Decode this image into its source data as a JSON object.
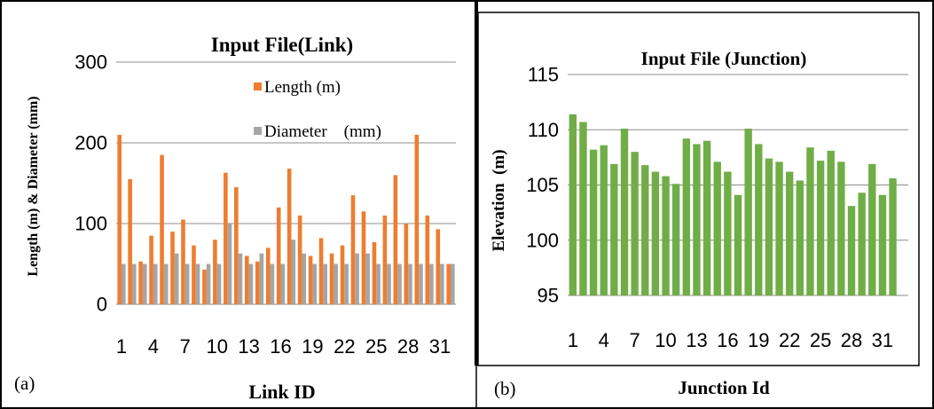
{
  "panels": [
    {
      "tag": "(a)"
    },
    {
      "tag": "(b)"
    }
  ],
  "chart_data": [
    {
      "type": "bar",
      "title": "Input File(Link)",
      "xlabel": "Link ID",
      "ylabel": "Length (m) & Diameter (mm)",
      "ylim": [
        0,
        300
      ],
      "yticks": [
        "0",
        "100",
        "200",
        "300"
      ],
      "grid": true,
      "legend_position": "top-right",
      "categories": [
        "1",
        "2",
        "3",
        "4",
        "5",
        "6",
        "7",
        "8",
        "9",
        "10",
        "11",
        "12",
        "13",
        "14",
        "15",
        "16",
        "17",
        "18",
        "19",
        "20",
        "21",
        "22",
        "23",
        "24",
        "25",
        "26",
        "27",
        "28",
        "29",
        "30",
        "31",
        "32"
      ],
      "xtick_labels": [
        "1",
        "4",
        "7",
        "10",
        "13",
        "16",
        "19",
        "22",
        "25",
        "28",
        "31"
      ],
      "series": [
        {
          "name": "Length (m)",
          "color": "#ed7d31",
          "values": [
            210,
            155,
            53,
            85,
            185,
            90,
            105,
            73,
            43,
            80,
            163,
            145,
            60,
            53,
            70,
            120,
            168,
            110,
            60,
            82,
            63,
            73,
            135,
            115,
            77,
            110,
            160,
            100,
            210,
            110,
            93,
            50
          ]
        },
        {
          "name": "Diameter    (mm)",
          "color": "#a5a5a5",
          "values": [
            50,
            50,
            50,
            50,
            50,
            63,
            50,
            50,
            50,
            50,
            100,
            63,
            50,
            63,
            50,
            50,
            80,
            63,
            50,
            50,
            50,
            50,
            63,
            63,
            50,
            50,
            50,
            50,
            50,
            50,
            50,
            50
          ]
        }
      ]
    },
    {
      "type": "bar",
      "title": "Input File (Junction)",
      "xlabel": "Junction Id",
      "ylabel": "Elevation  (m)",
      "ylim": [
        95,
        115
      ],
      "yticks": [
        "95",
        "100",
        "105",
        "110",
        "115"
      ],
      "grid": true,
      "categories": [
        "1",
        "2",
        "3",
        "4",
        "5",
        "6",
        "7",
        "8",
        "9",
        "10",
        "11",
        "12",
        "13",
        "14",
        "15",
        "16",
        "17",
        "18",
        "19",
        "20",
        "21",
        "22",
        "23",
        "24",
        "25",
        "26",
        "27",
        "28",
        "29",
        "30",
        "31",
        "32",
        "33"
      ],
      "xtick_labels": [
        "1",
        "4",
        "7",
        "10",
        "13",
        "16",
        "19",
        "22",
        "25",
        "28",
        "31"
      ],
      "series": [
        {
          "color": "#70ad47",
          "values": [
            111.4,
            110.7,
            108.2,
            108.6,
            106.9,
            110.1,
            108.0,
            106.8,
            106.2,
            105.8,
            105.1,
            109.2,
            108.7,
            109.0,
            107.1,
            106.2,
            104.1,
            110.1,
            108.7,
            107.4,
            107.1,
            106.2,
            105.4,
            108.4,
            107.2,
            108.1,
            107.1,
            103.1,
            104.3,
            106.9,
            104.1,
            105.6,
            95.0
          ]
        }
      ]
    }
  ]
}
